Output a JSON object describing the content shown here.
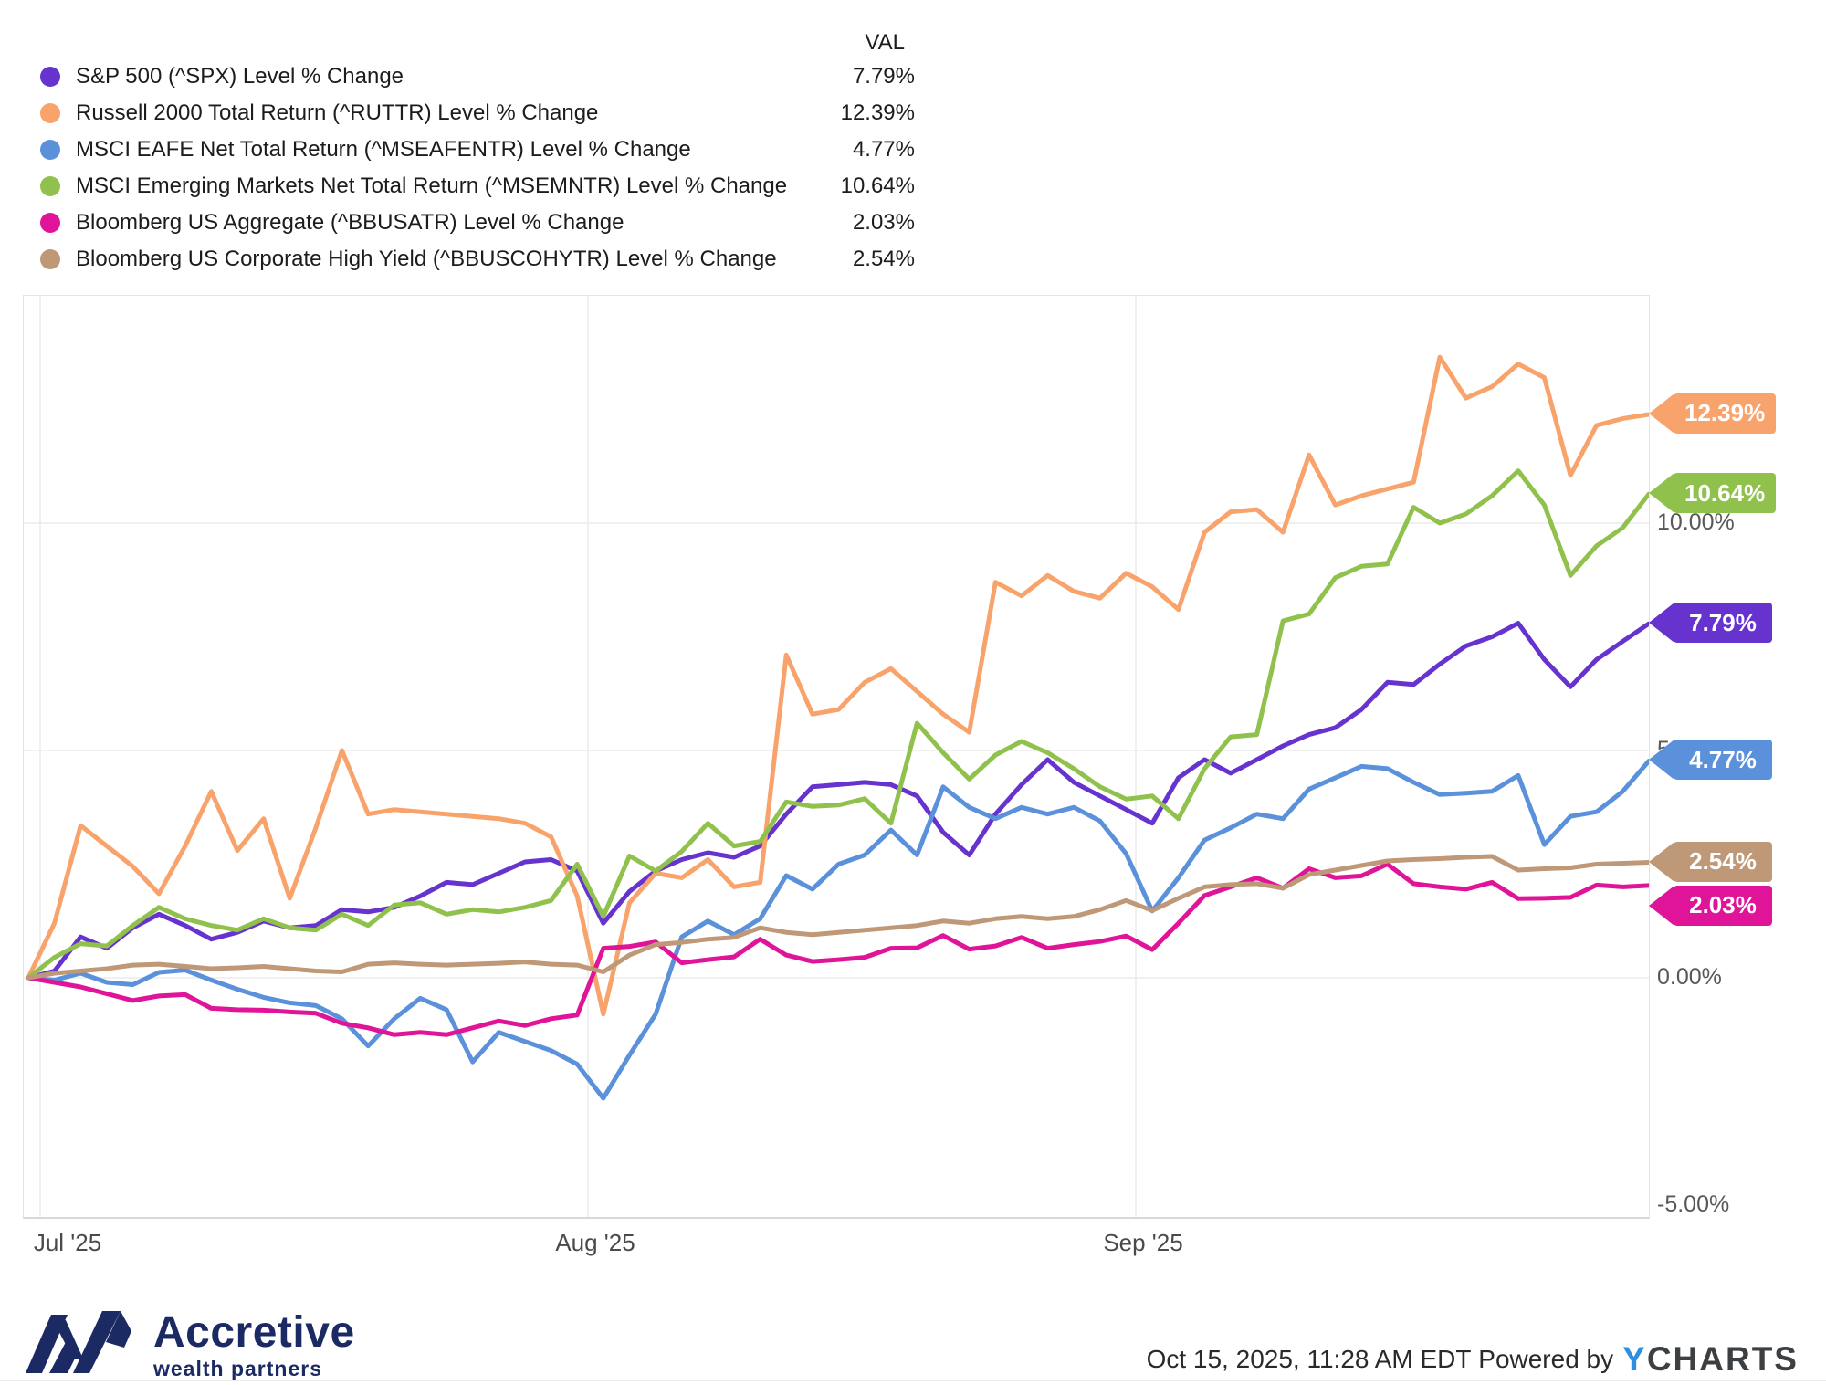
{
  "legend": {
    "val_header": "VAL"
  },
  "chart_data": {
    "type": "line",
    "title": "",
    "grid": true,
    "legend_position": "top-left",
    "x_axis": {
      "ticks": [
        "Jul '25",
        "Aug '25",
        "Sep '25"
      ]
    },
    "y_axis": {
      "ticks": [
        "10.00%",
        "5.00%",
        "0.00%",
        "-5.00%"
      ],
      "tick_values": [
        10,
        5,
        0,
        -5
      ],
      "range": [
        -5.25,
        15.0
      ],
      "unit": "%"
    },
    "series": [
      {
        "name": "S&P 500 (^SPX) Level % Change",
        "color": "#6733CE",
        "final_value": 7.79,
        "flag_label": "7.79%",
        "legend_value": "7.79%",
        "values": [
          0,
          0.15,
          0.9,
          0.65,
          1.1,
          1.4,
          1.15,
          0.85,
          1.0,
          1.25,
          1.1,
          1.15,
          1.5,
          1.45,
          1.55,
          1.8,
          2.1,
          2.05,
          2.3,
          2.55,
          2.6,
          2.35,
          1.2,
          1.9,
          2.35,
          2.6,
          2.75,
          2.65,
          2.9,
          3.6,
          4.2,
          4.25,
          4.3,
          4.25,
          4.0,
          3.2,
          2.7,
          3.6,
          4.25,
          4.8,
          4.3,
          4.0,
          3.7,
          3.4,
          4.4,
          4.8,
          4.5,
          4.8,
          5.1,
          5.35,
          5.5,
          5.9,
          6.5,
          6.45,
          6.9,
          7.3,
          7.5,
          7.8,
          7.0,
          6.4,
          7.0,
          7.4,
          7.79
        ]
      },
      {
        "name": "Russell 2000 Total Return (^RUTTR) Level % Change",
        "color": "#F9A36C",
        "final_value": 12.39,
        "flag_label": "12.39%",
        "legend_value": "12.39%",
        "values": [
          0,
          1.2,
          3.35,
          2.9,
          2.45,
          1.85,
          2.9,
          4.1,
          2.8,
          3.5,
          1.75,
          3.3,
          5.0,
          3.6,
          3.7,
          3.65,
          3.6,
          3.55,
          3.5,
          3.4,
          3.1,
          1.8,
          -0.8,
          1.65,
          2.3,
          2.2,
          2.6,
          2.0,
          2.1,
          7.1,
          5.8,
          5.9,
          6.5,
          6.8,
          6.3,
          5.8,
          5.4,
          8.7,
          8.4,
          8.85,
          8.5,
          8.35,
          8.9,
          8.6,
          8.1,
          9.8,
          10.25,
          10.3,
          9.8,
          11.5,
          10.4,
          10.6,
          10.75,
          10.9,
          13.65,
          12.75,
          13.0,
          13.5,
          13.2,
          11.05,
          12.15,
          12.3,
          12.39
        ]
      },
      {
        "name": "MSCI EAFE Net Total Return (^MSEAFENTR) Level % Change",
        "color": "#5B90DB",
        "final_value": 4.77,
        "flag_label": "4.77%",
        "legend_value": "4.77%",
        "values": [
          0,
          -0.05,
          0.1,
          -0.1,
          -0.15,
          0.12,
          0.17,
          -0.05,
          -0.25,
          -0.43,
          -0.55,
          -0.61,
          -0.9,
          -1.5,
          -0.9,
          -0.45,
          -0.7,
          -1.85,
          -1.2,
          -1.4,
          -1.6,
          -1.9,
          -2.65,
          -1.7,
          -0.8,
          0.9,
          1.25,
          0.95,
          1.3,
          2.25,
          1.95,
          2.5,
          2.7,
          3.25,
          2.7,
          4.2,
          3.75,
          3.5,
          3.75,
          3.6,
          3.75,
          3.45,
          2.73,
          1.47,
          2.2,
          3.03,
          3.3,
          3.6,
          3.5,
          4.15,
          4.4,
          4.65,
          4.6,
          4.3,
          4.03,
          4.06,
          4.1,
          4.45,
          2.93,
          3.55,
          3.65,
          4.1,
          4.77
        ]
      },
      {
        "name": "MSCI Emerging Markets Net Total Return (^MSEMNTR) Level % Change",
        "color": "#90C14C",
        "final_value": 10.64,
        "flag_label": "10.64%",
        "legend_value": "10.64%",
        "values": [
          0,
          0.45,
          0.75,
          0.7,
          1.15,
          1.55,
          1.3,
          1.15,
          1.05,
          1.3,
          1.1,
          1.05,
          1.4,
          1.15,
          1.6,
          1.65,
          1.4,
          1.5,
          1.45,
          1.55,
          1.7,
          2.5,
          1.35,
          2.68,
          2.35,
          2.78,
          3.4,
          2.9,
          3.0,
          3.87,
          3.77,
          3.8,
          3.94,
          3.4,
          5.6,
          4.95,
          4.37,
          4.9,
          5.2,
          4.95,
          4.6,
          4.2,
          3.93,
          4.0,
          3.5,
          4.6,
          5.3,
          5.35,
          7.85,
          8.0,
          8.8,
          9.05,
          9.1,
          10.35,
          10.0,
          10.2,
          10.6,
          11.15,
          10.4,
          8.85,
          9.5,
          9.9,
          10.64
        ]
      },
      {
        "name": "Bloomberg US Aggregate (^BBUSATR) Level % Change",
        "color": "#E01498",
        "final_value": 2.03,
        "flag_label": "2.03%",
        "legend_value": "2.03%",
        "values": [
          0,
          -0.1,
          -0.2,
          -0.35,
          -0.5,
          -0.4,
          -0.37,
          -0.67,
          -0.7,
          -0.71,
          -0.75,
          -0.78,
          -1.0,
          -1.1,
          -1.25,
          -1.2,
          -1.25,
          -1.1,
          -0.95,
          -1.05,
          -0.9,
          -0.82,
          0.65,
          0.69,
          0.79,
          0.33,
          0.4,
          0.46,
          0.85,
          0.5,
          0.36,
          0.4,
          0.45,
          0.65,
          0.66,
          0.93,
          0.63,
          0.7,
          0.89,
          0.65,
          0.73,
          0.8,
          0.92,
          0.62,
          1.2,
          1.81,
          2.0,
          2.2,
          1.97,
          2.4,
          2.2,
          2.24,
          2.5,
          2.07,
          2.0,
          1.95,
          2.1,
          1.74,
          1.75,
          1.77,
          2.04,
          2.0,
          2.03
        ]
      },
      {
        "name": "Bloomberg US Corporate High Yield (^BBUSCOHYTR) Level % Change",
        "color": "#BF9878",
        "final_value": 2.54,
        "flag_label": "2.54%",
        "legend_value": "2.54%",
        "values": [
          0,
          0.1,
          0.15,
          0.2,
          0.28,
          0.3,
          0.25,
          0.2,
          0.22,
          0.25,
          0.2,
          0.15,
          0.13,
          0.3,
          0.33,
          0.3,
          0.28,
          0.3,
          0.32,
          0.35,
          0.3,
          0.28,
          0.13,
          0.5,
          0.73,
          0.78,
          0.85,
          0.89,
          1.1,
          1.0,
          0.95,
          1.0,
          1.05,
          1.1,
          1.15,
          1.25,
          1.2,
          1.3,
          1.35,
          1.3,
          1.35,
          1.5,
          1.7,
          1.48,
          1.75,
          2.0,
          2.05,
          2.07,
          1.97,
          2.27,
          2.37,
          2.47,
          2.57,
          2.6,
          2.62,
          2.65,
          2.67,
          2.37,
          2.4,
          2.42,
          2.5,
          2.52,
          2.54
        ]
      }
    ]
  },
  "footer": {
    "logo_title": "Accretive",
    "logo_subtitle": "wealth partners",
    "timestamp": "Oct 15, 2025, 11:28 AM EDT",
    "powered_by": "Powered by",
    "brand_y": "Y",
    "brand_rest": "CHARTS"
  }
}
